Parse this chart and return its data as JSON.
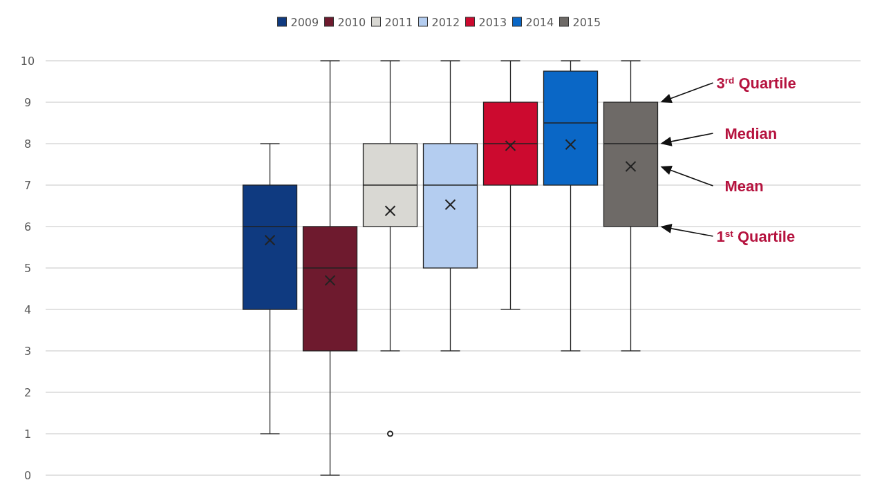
{
  "chart_data": {
    "type": "box",
    "categories": [
      null
    ],
    "ylim": [
      0,
      10
    ],
    "yticks": [
      0,
      1,
      2,
      3,
      4,
      5,
      6,
      7,
      8,
      9,
      10
    ],
    "grid": "y",
    "legend": "top",
    "tick_labels": "y",
    "series": [
      {
        "name": "2009",
        "color": "#0f3a80",
        "boxes": [
          {
            "low": 1,
            "q1": 4,
            "median": 6,
            "q3": 7,
            "high": 8,
            "mean": 5.67
          }
        ]
      },
      {
        "name": "2010",
        "color": "#6e1a2e",
        "boxes": [
          {
            "low": 0,
            "q1": 3,
            "median": 5,
            "q3": 6,
            "high": 10,
            "mean": 4.7
          }
        ]
      },
      {
        "name": "2011",
        "color": "#d9d8d3",
        "boxes": [
          {
            "low": 3,
            "q1": 6,
            "median": 7,
            "q3": 8,
            "high": 10,
            "mean": 6.38,
            "outliers": [
              1
            ]
          }
        ]
      },
      {
        "name": "2012",
        "color": "#b4cdf0",
        "boxes": [
          {
            "low": 3,
            "q1": 5,
            "median": 7,
            "q3": 8,
            "high": 10,
            "mean": 6.53
          }
        ]
      },
      {
        "name": "2013",
        "color": "#cc0a2f",
        "boxes": [
          {
            "low": 4,
            "q1": 7,
            "median": 8,
            "q3": 9,
            "high": 10,
            "mean": 7.95
          }
        ]
      },
      {
        "name": "2014",
        "color": "#0a67c6",
        "boxes": [
          {
            "low": 3,
            "q1": 7,
            "median": 8.5,
            "q3": 9.75,
            "high": 10,
            "mean": 7.98
          }
        ]
      },
      {
        "name": "2015",
        "color": "#6e6a67",
        "boxes": [
          {
            "low": 3,
            "q1": 6,
            "median": 8,
            "q3": 9,
            "high": 10,
            "mean": 7.45
          }
        ]
      }
    ],
    "annotations": [
      "3$^{rd}$ Quartile",
      "Median",
      "Mean",
      "1$^{st}$ Quartile"
    ]
  }
}
